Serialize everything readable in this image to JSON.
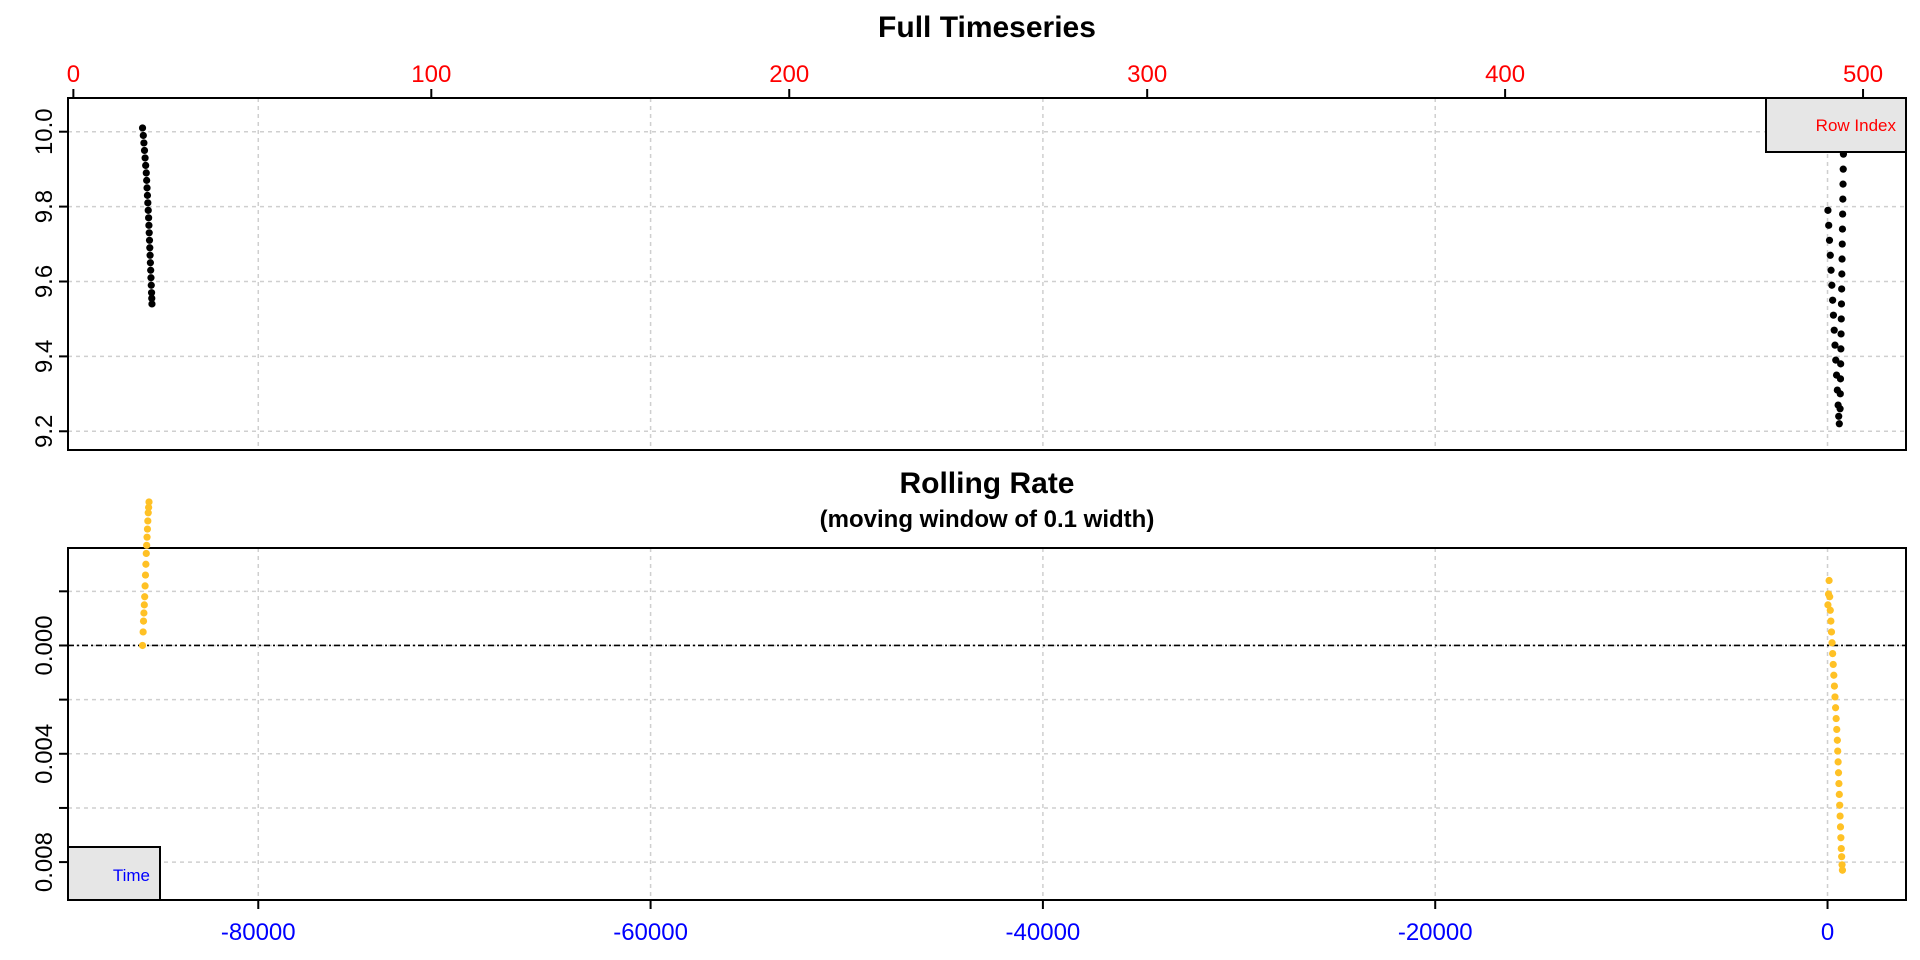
{
  "chart_data": [
    {
      "type": "scatter",
      "title": "Full Timeseries",
      "subtitle": "",
      "xlabel": "",
      "ylabel": "",
      "top_axis": {
        "label": "Row Index",
        "range": [
          -1.5,
          512
        ],
        "ticks": [
          0,
          100,
          200,
          300,
          400,
          500
        ],
        "color": "#ff0000"
      },
      "bottom_axis": {
        "label": "Time",
        "range": [
          -89700,
          4000
        ],
        "ticks": [
          -80000,
          -60000,
          -40000,
          -20000,
          0
        ],
        "tick_labels_visible": false
      },
      "ylim": [
        9.15,
        10.09
      ],
      "yticks": [
        9.2,
        9.4,
        9.6,
        9.8,
        10.0
      ],
      "ytick_labels": [
        "9.2",
        "9.4",
        "9.6",
        "9.8",
        "10.0"
      ],
      "grid": true,
      "legend": {
        "position": "top-right",
        "entries": [
          "Row Index"
        ]
      },
      "marker_color": "#000000",
      "series": [
        {
          "x_axis": "time",
          "points": [
            [
              -85900,
              10.01
            ],
            [
              -85860,
              9.99
            ],
            [
              -85830,
              9.97
            ],
            [
              -85800,
              9.95
            ],
            [
              -85770,
              9.93
            ],
            [
              -85740,
              9.91
            ],
            [
              -85710,
              9.89
            ],
            [
              -85690,
              9.87
            ],
            [
              -85670,
              9.85
            ],
            [
              -85650,
              9.83
            ],
            [
              -85630,
              9.81
            ],
            [
              -85610,
              9.79
            ],
            [
              -85590,
              9.77
            ],
            [
              -85575,
              9.75
            ],
            [
              -85560,
              9.73
            ],
            [
              -85545,
              9.71
            ],
            [
              -85530,
              9.69
            ],
            [
              -85515,
              9.67
            ],
            [
              -85500,
              9.65
            ],
            [
              -85485,
              9.63
            ],
            [
              -85470,
              9.61
            ],
            [
              -85455,
              9.59
            ],
            [
              -85440,
              9.57
            ],
            [
              -85430,
              9.555
            ],
            [
              -85420,
              9.54
            ],
            [
              20,
              9.79
            ],
            [
              60,
              9.75
            ],
            [
              100,
              9.71
            ],
            [
              140,
              9.67
            ],
            [
              180,
              9.63
            ],
            [
              220,
              9.59
            ],
            [
              260,
              9.55
            ],
            [
              300,
              9.51
            ],
            [
              340,
              9.47
            ],
            [
              380,
              9.43
            ],
            [
              420,
              9.39
            ],
            [
              460,
              9.35
            ],
            [
              500,
              9.31
            ],
            [
              540,
              9.27
            ],
            [
              570,
              9.24
            ],
            [
              600,
              9.22
            ],
            [
              640,
              9.26
            ],
            [
              650,
              9.3
            ],
            [
              660,
              9.34
            ],
            [
              670,
              9.38
            ],
            [
              680,
              9.42
            ],
            [
              690,
              9.46
            ],
            [
              700,
              9.5
            ],
            [
              710,
              9.54
            ],
            [
              720,
              9.58
            ],
            [
              730,
              9.62
            ],
            [
              740,
              9.66
            ],
            [
              750,
              9.7
            ],
            [
              760,
              9.74
            ],
            [
              770,
              9.78
            ],
            [
              780,
              9.82
            ],
            [
              790,
              9.86
            ],
            [
              800,
              9.9
            ],
            [
              810,
              9.94
            ],
            [
              820,
              9.98
            ]
          ]
        }
      ]
    },
    {
      "type": "scatter",
      "title": "Rolling Rate",
      "subtitle": "(moving window of 0.1 width)",
      "xlabel": "",
      "ylabel": "",
      "x_axis": {
        "label": "Time",
        "range": [
          -89700,
          4000
        ],
        "ticks": [
          -80000,
          -60000,
          -40000,
          -20000,
          0
        ],
        "tick_labels": [
          "-80000",
          "-60000",
          "-40000",
          "-20000",
          "0"
        ],
        "color": "#0000ff"
      },
      "ylim": [
        0.0094,
        -0.0036
      ],
      "y_direction": "downward",
      "yticks": [
        0.0,
        0.004,
        0.008
      ],
      "ytick_labels": [
        "0.000",
        "0.004",
        "0.008"
      ],
      "yticks_minor": [
        -0.002,
        0.002,
        0.006
      ],
      "reference_line": {
        "y": 0.0,
        "style": "dash-dot",
        "color": "#000000"
      },
      "grid": true,
      "legend": {
        "position": "bottom-left",
        "entries": [
          "Time"
        ]
      },
      "marker_color": "#ffc125",
      "series": [
        {
          "points": [
            [
              -85900,
              0.0
            ],
            [
              -85870,
              -0.0005
            ],
            [
              -85850,
              -0.0009
            ],
            [
              -85830,
              -0.0012
            ],
            [
              -85810,
              -0.0015
            ],
            [
              -85790,
              -0.0018
            ],
            [
              -85770,
              -0.0022
            ],
            [
              -85750,
              -0.0026
            ],
            [
              -85730,
              -0.003
            ],
            [
              -85710,
              -0.0034
            ],
            [
              -85690,
              -0.0037
            ],
            [
              -85670,
              -0.004
            ],
            [
              -85650,
              -0.0043
            ],
            [
              -85630,
              -0.0046
            ],
            [
              -85610,
              -0.0049
            ],
            [
              -85590,
              -0.0051
            ],
            [
              -85570,
              -0.0053
            ],
            [
              20,
              -0.0015
            ],
            [
              50,
              -0.0019
            ],
            [
              80,
              -0.0024
            ],
            [
              110,
              -0.0018
            ],
            [
              140,
              -0.0013
            ],
            [
              170,
              -0.0009
            ],
            [
              200,
              -0.0005
            ],
            [
              230,
              -0.0001
            ],
            [
              260,
              0.0003
            ],
            [
              290,
              0.0007
            ],
            [
              320,
              0.0011
            ],
            [
              350,
              0.0015
            ],
            [
              380,
              0.0019
            ],
            [
              410,
              0.0023
            ],
            [
              440,
              0.0027
            ],
            [
              470,
              0.0031
            ],
            [
              500,
              0.0035
            ],
            [
              520,
              0.0039
            ],
            [
              540,
              0.0043
            ],
            [
              560,
              0.0047
            ],
            [
              580,
              0.0051
            ],
            [
              600,
              0.0055
            ],
            [
              620,
              0.0059
            ],
            [
              640,
              0.0063
            ],
            [
              660,
              0.0067
            ],
            [
              680,
              0.0071
            ],
            [
              700,
              0.0075
            ],
            [
              720,
              0.0078
            ],
            [
              740,
              0.0081
            ],
            [
              760,
              0.0083
            ]
          ]
        }
      ]
    }
  ]
}
